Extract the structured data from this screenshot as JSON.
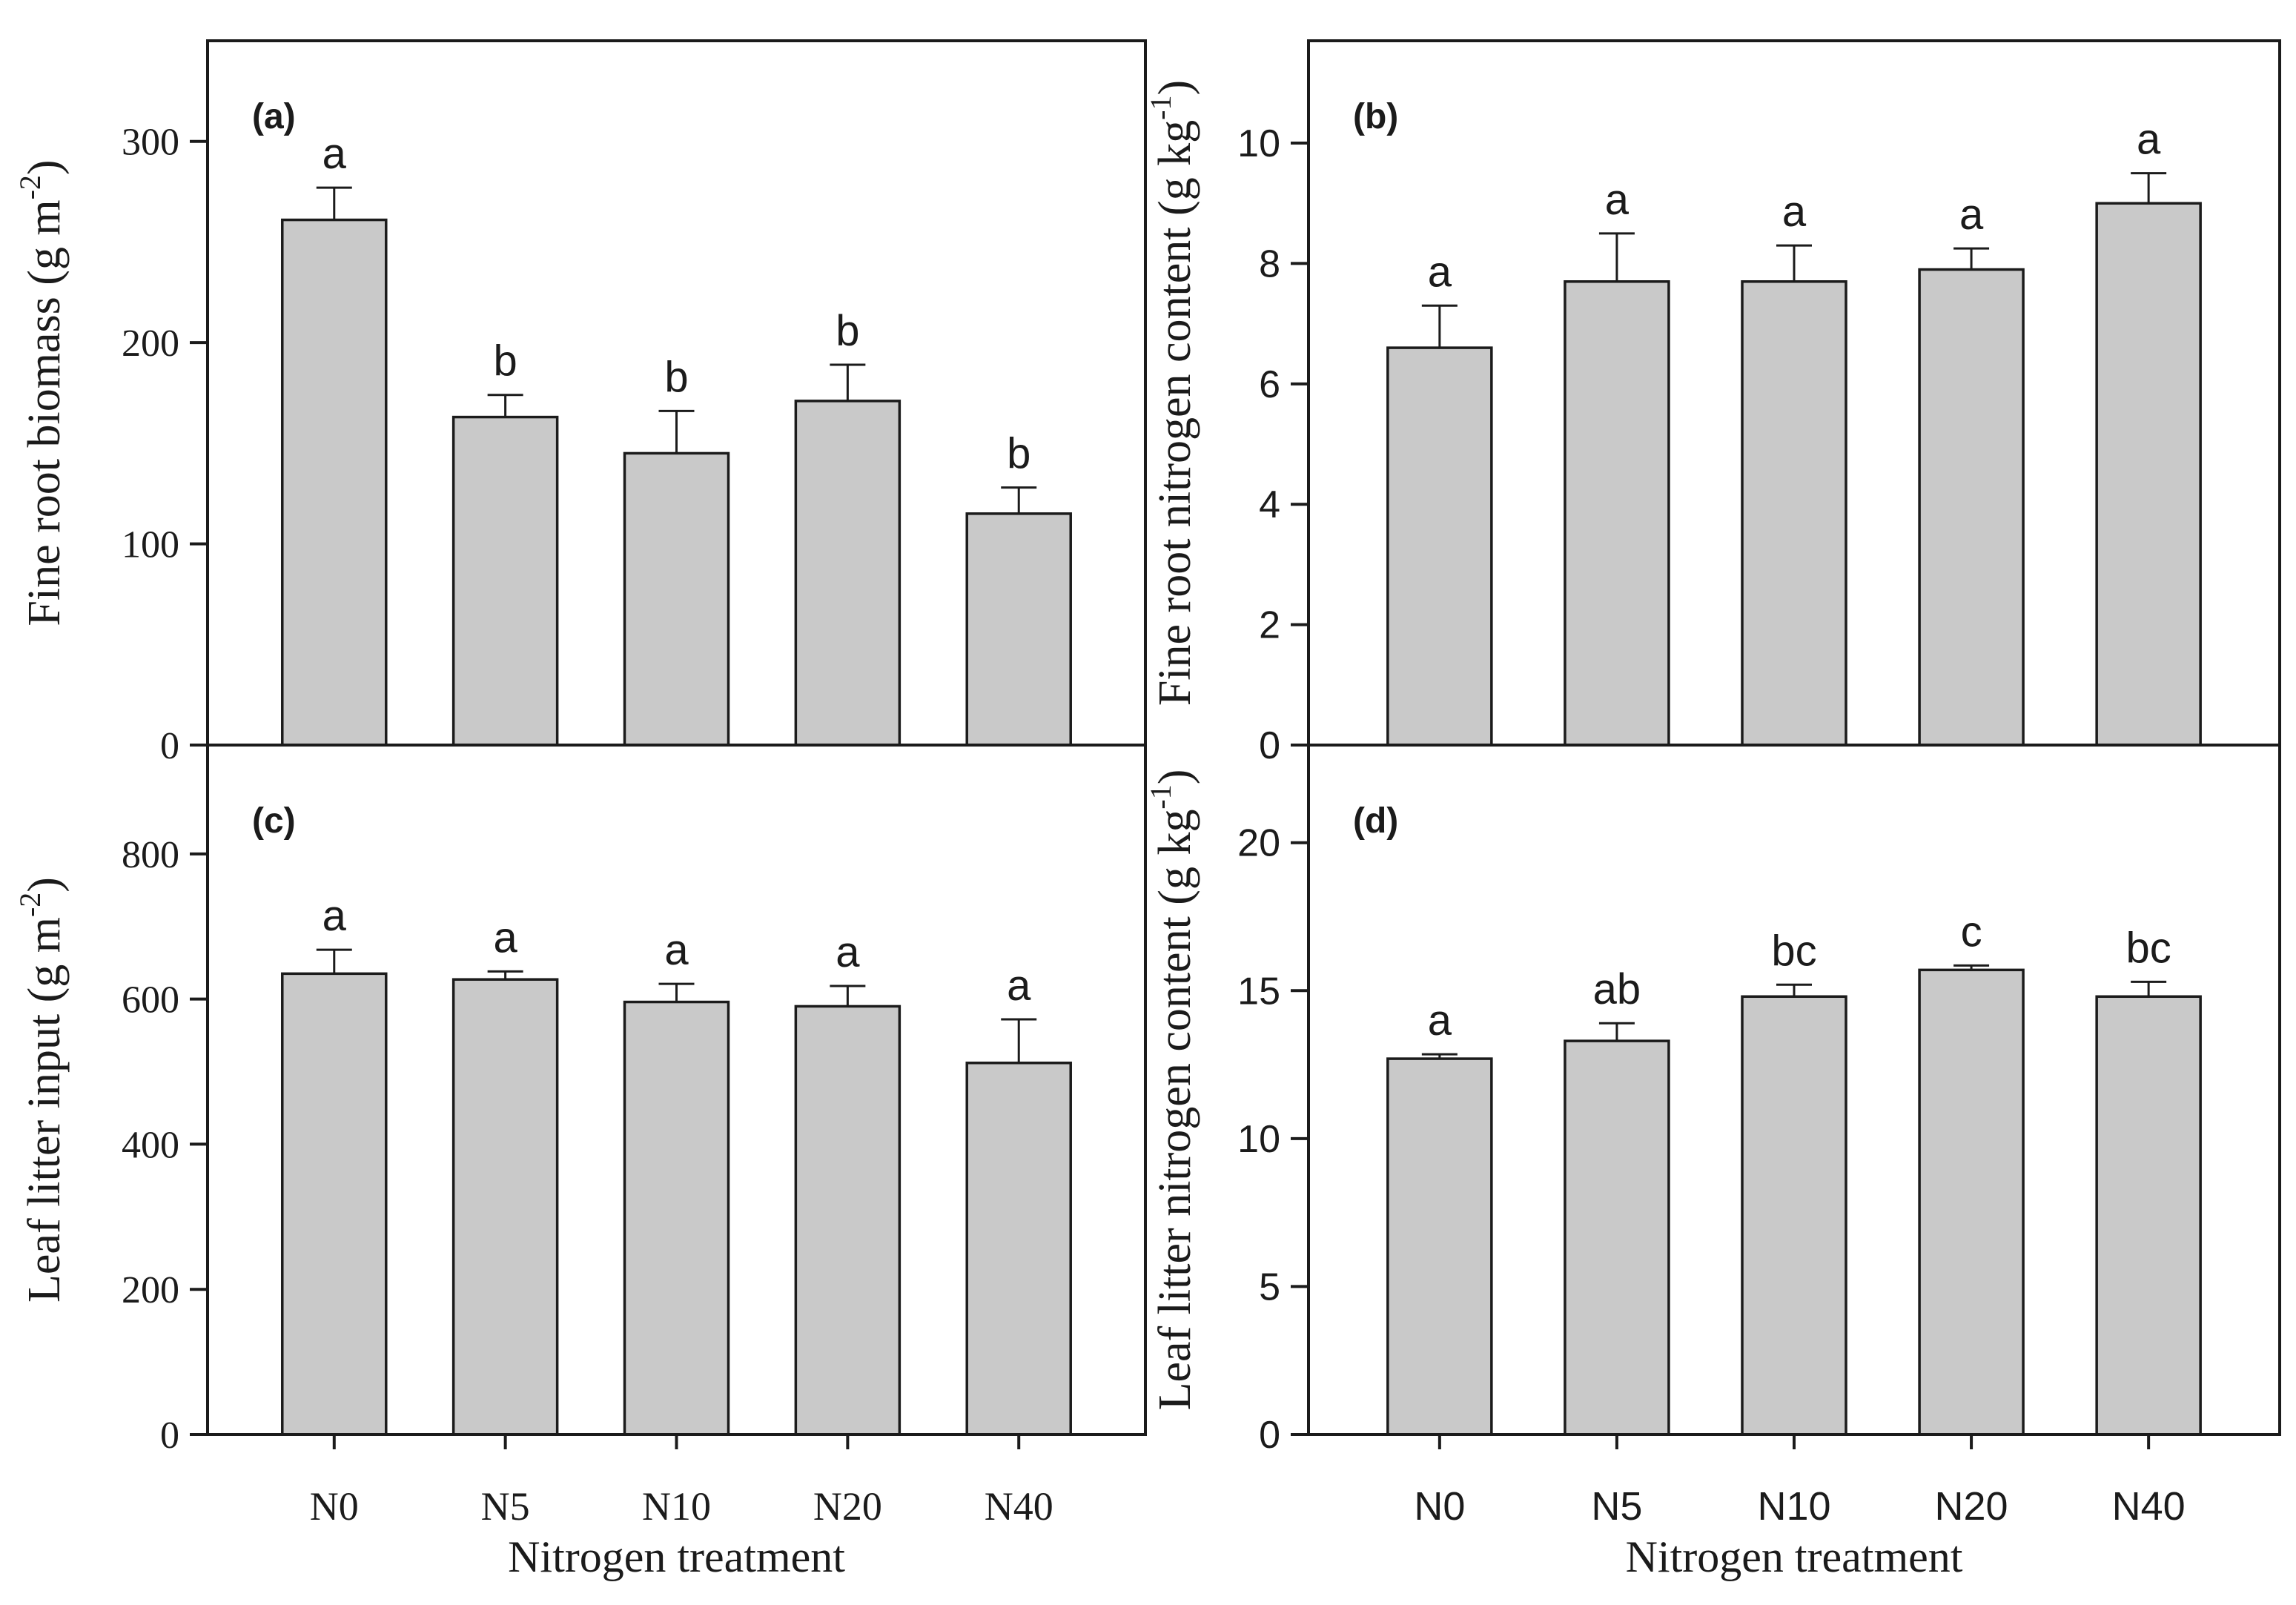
{
  "figure": {
    "background": "#ffffff",
    "bar_fill": "#c9c9c9",
    "line_color": "#1b1b1b",
    "text_color": "#1b1b1b"
  },
  "x_axis_title": "Nitrogen treatment",
  "categories": [
    "N0",
    "N5",
    "N10",
    "N20",
    "N40"
  ],
  "chart_data": [
    {
      "id": "a",
      "type": "bar",
      "panel_label": "(a)",
      "ylabel_pre": "Fine root biomass (g m",
      "ylabel_sup": "-2",
      "ylabel_post": ")",
      "categories": [
        "N0",
        "N5",
        "N10",
        "N20",
        "N40"
      ],
      "values": [
        261,
        163,
        145,
        171,
        115
      ],
      "errors_up": [
        16,
        11,
        21,
        18,
        13
      ],
      "sig_letters": [
        "a",
        "b",
        "b",
        "b",
        "b"
      ],
      "yticks": [
        0,
        100,
        200,
        300
      ],
      "ylim": [
        0,
        350
      ],
      "tick_label_font": "serif",
      "category_font": "serif",
      "show_x_labels": false,
      "xlabel": ""
    },
    {
      "id": "b",
      "type": "bar",
      "panel_label": "(b)",
      "ylabel_pre": "Fine root nitrogen content (g kg",
      "ylabel_sup": "-1",
      "ylabel_post": ")",
      "categories": [
        "N0",
        "N5",
        "N10",
        "N20",
        "N40"
      ],
      "values": [
        6.6,
        7.7,
        7.7,
        7.9,
        9.0
      ],
      "errors_up": [
        0.7,
        0.8,
        0.6,
        0.35,
        0.5
      ],
      "sig_letters": [
        "a",
        "a",
        "a",
        "a",
        "a"
      ],
      "yticks": [
        0,
        2,
        4,
        6,
        8,
        10
      ],
      "ylim": [
        0,
        11.7
      ],
      "tick_label_font": "sans",
      "category_font": "sans",
      "show_x_labels": false,
      "xlabel": ""
    },
    {
      "id": "c",
      "type": "bar",
      "panel_label": "(c)",
      "ylabel_pre": "Leaf litter input (g m",
      "ylabel_sup": "-2",
      "ylabel_post": ")",
      "categories": [
        "N0",
        "N5",
        "N10",
        "N20",
        "N40"
      ],
      "values": [
        635,
        627,
        596,
        590,
        512
      ],
      "errors_up": [
        33,
        11,
        25,
        28,
        60
      ],
      "sig_letters": [
        "a",
        "a",
        "a",
        "a",
        "a"
      ],
      "yticks": [
        0,
        200,
        400,
        600,
        800
      ],
      "ylim": [
        0,
        950
      ],
      "tick_label_font": "serif",
      "category_font": "serif",
      "show_x_labels": true,
      "xlabel": "Nitrogen treatment"
    },
    {
      "id": "d",
      "type": "bar",
      "panel_label": "(d)",
      "ylabel_pre": "Leaf litter nitrogen content (g kg",
      "ylabel_sup": "-1",
      "ylabel_post": ")",
      "categories": [
        "N0",
        "N5",
        "N10",
        "N20",
        "N40"
      ],
      "values": [
        12.7,
        13.3,
        14.8,
        15.7,
        14.8
      ],
      "errors_up": [
        0.15,
        0.6,
        0.4,
        0.15,
        0.5
      ],
      "sig_letters": [
        "a",
        "ab",
        "bc",
        "c",
        "bc"
      ],
      "yticks": [
        0,
        5,
        10,
        15,
        20
      ],
      "ylim": [
        0,
        23.3
      ],
      "tick_label_font": "sans",
      "category_font": "sans",
      "show_x_labels": true,
      "xlabel": "Nitrogen treatment"
    }
  ]
}
